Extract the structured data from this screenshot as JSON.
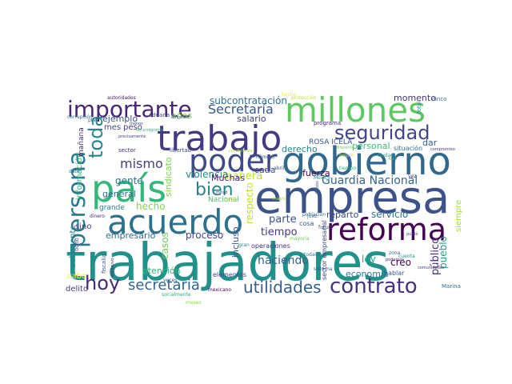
{
  "words": [
    {
      "text": "trabajadores",
      "color": "#21918c"
    },
    {
      "text": "empresa",
      "color": "#3b528b"
    },
    {
      "text": "gobierno",
      "color": "#31688e"
    },
    {
      "text": "millones",
      "color": "#5ec962"
    },
    {
      "text": "trabajo",
      "color": "#443983"
    },
    {
      "text": "país",
      "color": "#35b779"
    },
    {
      "text": "acuerdo",
      "color": "#2c728e"
    },
    {
      "text": "reforma",
      "color": "#440154"
    },
    {
      "text": "poder",
      "color": "#3e4a89"
    },
    {
      "text": "importante",
      "color": "#482475"
    },
    {
      "text": "seguridad",
      "color": "#414487"
    },
    {
      "text": "persona",
      "color": "#2a788e"
    },
    {
      "text": "contrato",
      "color": "#46327e"
    },
    {
      "text": "hoy",
      "color": "#482878"
    },
    {
      "text": "bien",
      "color": "#26828e"
    },
    {
      "text": "toda",
      "color": "#25848e"
    },
    {
      "text": "utilidades",
      "color": "#355f8d"
    },
    {
      "text": "secretaria",
      "color": "#33638d"
    },
    {
      "text": "Secretaría",
      "color": "#38588c"
    },
    {
      "text": "Guardia Nacional",
      "color": "#31688e"
    },
    {
      "text": "mismo",
      "color": "#433e85"
    },
    {
      "text": "haciendo",
      "color": "#355f8d"
    },
    {
      "text": "subcontratación",
      "color": "#2d708e"
    },
    {
      "text": "proceso",
      "color": "#404688"
    },
    {
      "text": "parte",
      "color": "#3b528b"
    },
    {
      "text": "tiempo",
      "color": "#453781"
    },
    {
      "text": "momento",
      "color": "#46337f"
    },
    {
      "text": "servicio",
      "color": "#2a788e"
    },
    {
      "text": "reparto",
      "color": "#3e4c8a"
    },
    {
      "text": "creo",
      "color": "#440154"
    },
    {
      "text": "economía",
      "color": "#2a788e"
    },
    {
      "text": "público",
      "color": "#472d7b"
    },
    {
      "text": "pueblo",
      "color": "#1f9e89"
    },
    {
      "text": "ley",
      "color": "#22a884"
    },
    {
      "text": "personal",
      "color": "#3dbc74"
    },
    {
      "text": "dar",
      "color": "#31688e"
    },
    {
      "text": "derecho",
      "color": "#25858e"
    },
    {
      "text": "fuerza",
      "color": "#440154"
    },
    {
      "text": "cada",
      "color": "#3b528b"
    },
    {
      "text": "manera",
      "color": "#bddf26"
    },
    {
      "text": "violencia",
      "color": "#26828e"
    },
    {
      "text": "sindicato",
      "color": "#7ad151"
    },
    {
      "text": "hecho",
      "color": "#84d44b"
    },
    {
      "text": "gente",
      "color": "#2a788e"
    },
    {
      "text": "general",
      "color": "#2c718e"
    },
    {
      "text": "empresario",
      "color": "#31688e"
    },
    {
      "text": "ejemplo",
      "color": "#3b528b"
    },
    {
      "text": "años",
      "color": "#7ad151"
    },
    {
      "text": "salario",
      "color": "#424186"
    },
    {
      "text": "información",
      "color": "#2fb47c"
    },
    {
      "text": "mañana",
      "color": "#472c7a"
    },
    {
      "text": "mes",
      "color": "#3e4a89"
    },
    {
      "text": "peso",
      "color": "#453882"
    },
    {
      "text": "Muchas",
      "color": "#482173"
    },
    {
      "text": "respecto",
      "color": "#c8e020"
    },
    {
      "text": "incluso",
      "color": "#3a538b"
    },
    {
      "text": "casos",
      "color": "#6ece58"
    },
    {
      "text": "atención",
      "color": "#32b67a"
    },
    {
      "text": "cabo",
      "color": "#fde725"
    },
    {
      "text": "delito",
      "color": "#433e85"
    },
    {
      "text": "solamente",
      "color": "#287c8e"
    },
    {
      "text": "sino",
      "color": "#46337f"
    },
    {
      "text": "grande",
      "color": "#287d8e"
    },
    {
      "text": "siempre",
      "color": "#a0da39"
    },
    {
      "text": "ROSA ICELA",
      "color": "#39558c"
    },
    {
      "text": "situación",
      "color": "#2c728e"
    },
    {
      "text": "Nacional",
      "color": "#4ac16d"
    },
    {
      "text": "elementos",
      "color": "#3f4889"
    },
    {
      "text": "sector empresarial",
      "color": "#414487"
    },
    {
      "text": "hablar",
      "color": "#365c8d"
    },
    {
      "text": "Marina",
      "color": "#2c728e"
    },
    {
      "text": "operaciones",
      "color": "#46327e"
    },
    {
      "text": "mayoría",
      "color": "#6ccd5a"
    },
    {
      "text": "cosa",
      "color": "#3b528b"
    },
    {
      "text": "cinco",
      "color": "#2e6e8e"
    },
    {
      "text": "total",
      "color": "#21918c"
    },
    {
      "text": "programa",
      "color": "#482475"
    },
    {
      "text": "libertad",
      "color": "#3f4788"
    },
    {
      "text": "sector",
      "color": "#482878"
    },
    {
      "text": "aduana",
      "color": "#3f4889"
    },
    {
      "text": "fiscalía",
      "color": "#39558c"
    },
    {
      "text": "ocho",
      "color": "#443a83"
    },
    {
      "text": "meses",
      "color": "#8fd744"
    },
    {
      "text": "mexicano",
      "color": "#440154"
    },
    {
      "text": "todavía",
      "color": "#2b758e"
    },
    {
      "text": "población",
      "color": "#33638d"
    },
    {
      "text": "tiempo",
      "color": "#26ad81"
    },
    {
      "text": "pesos",
      "color": "#46337f"
    },
    {
      "text": "sistema",
      "color": "#365d8d"
    },
    {
      "text": "dinero",
      "color": "#481f70"
    },
    {
      "text": "corrupción",
      "color": "#2a768e"
    },
    {
      "text": "autoridades",
      "color": "#481467"
    },
    {
      "text": "protección",
      "color": "#b5de2b"
    },
    {
      "text": "dirigente",
      "color": "#31688e"
    },
    {
      "text": "menos",
      "color": "#3e4989"
    },
    {
      "text": "plan",
      "color": "#33638d"
    },
    {
      "text": "obra",
      "color": "#3fbc73"
    },
    {
      "text": "migrante",
      "color": "#2db27d"
    },
    {
      "text": "precisamente",
      "color": "#404588"
    },
    {
      "text": "compromiso",
      "color": "#46337f"
    },
    {
      "text": "comunidades",
      "color": "#472f7d"
    },
    {
      "text": "socialmente",
      "color": "#28ae80"
    },
    {
      "text": "exclusivo",
      "color": "#482576"
    },
    {
      "text": "veces",
      "color": "#38598c"
    },
    {
      "text": "seguir",
      "color": "#bddf26"
    },
    {
      "text": "hecho",
      "color": "#fde725"
    },
    {
      "text": "dato",
      "color": "#2e6d8e"
    },
    {
      "text": "zona",
      "color": "#31688e"
    },
    {
      "text": "futuro",
      "color": "#3a548c"
    },
    {
      "text": "juez",
      "color": "#2d718e"
    },
    {
      "text": "gran",
      "color": "#277f8e"
    },
    {
      "text": "mayo",
      "color": "#b0dd2f"
    },
    {
      "text": "podemos",
      "color": "#482878"
    },
    {
      "text": "abril",
      "color": "#3c4f8a"
    },
    {
      "text": "número",
      "color": "#33628d"
    },
    {
      "text": "ciudad",
      "color": "#22a785"
    },
    {
      "text": "vez",
      "color": "#46307e"
    },
    {
      "text": "cuenta",
      "color": "#20928c"
    },
    {
      "text": "México",
      "color": "#21918c"
    },
    {
      "text": "diferente",
      "color": "#73d056"
    },
    {
      "text": "condiciones",
      "color": "#a8db34"
    },
    {
      "text": "mitad",
      "color": "#3d4d8a"
    },
    {
      "text": "Dobbs",
      "color": "#34608d"
    },
    {
      "text": "fácil",
      "color": "#43bf71"
    },
    {
      "text": "punto",
      "color": "#3b528b"
    },
    {
      "text": "medio",
      "color": "#d2e21b"
    }
  ]
}
